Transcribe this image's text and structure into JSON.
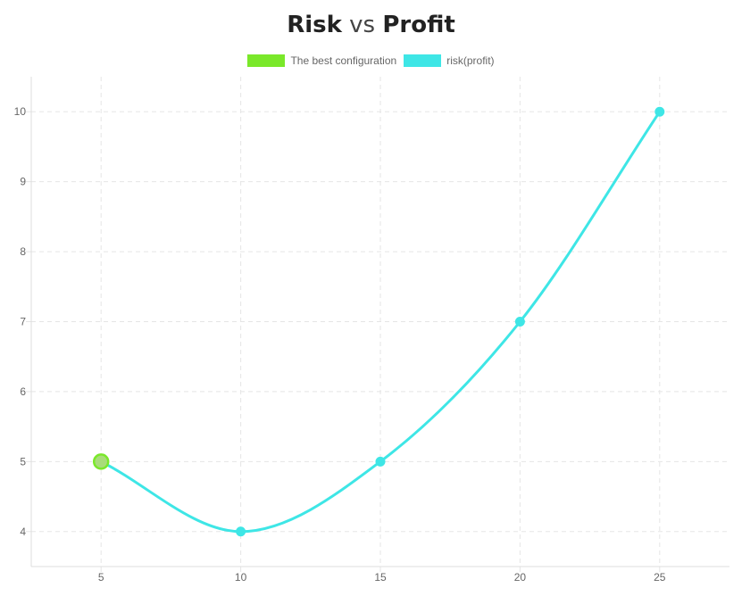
{
  "title": {
    "part1": "Risk",
    "part2": "vs",
    "part3": "Profit"
  },
  "legend": [
    {
      "label": "The best configuration",
      "color": "#7ae82a"
    },
    {
      "label": "risk(profit)",
      "color": "#3ee6e6"
    }
  ],
  "chart_data": {
    "type": "line",
    "title": "Risk vs Profit",
    "xlabel": "",
    "ylabel": "",
    "xlim": [
      2.5,
      27.5
    ],
    "ylim": [
      3.5,
      10.5
    ],
    "xticks": [
      5,
      10,
      15,
      20,
      25
    ],
    "yticks": [
      4,
      5,
      6,
      7,
      8,
      9,
      10
    ],
    "grid": true,
    "legend_position": "top",
    "series": [
      {
        "name": "risk(profit)",
        "color": "#3ee6e6",
        "x": [
          5,
          10,
          15,
          20,
          25
        ],
        "y": [
          5,
          4,
          5,
          7,
          10
        ]
      },
      {
        "name": "The best configuration",
        "color": "#7ae82a",
        "x": [
          5
        ],
        "y": [
          5
        ]
      }
    ]
  }
}
